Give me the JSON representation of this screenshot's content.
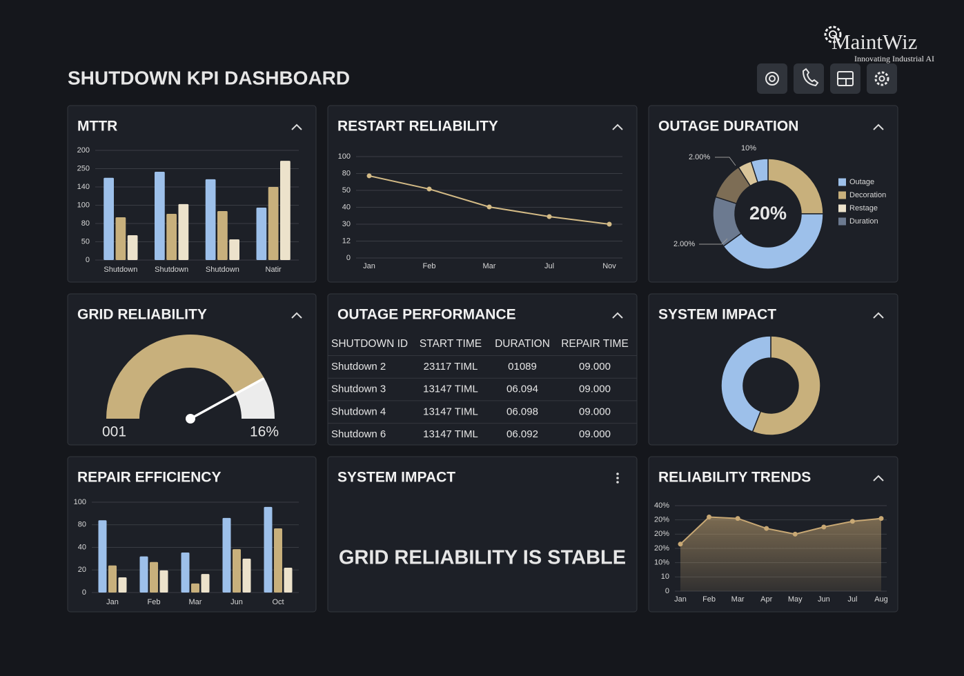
{
  "header": {
    "title": "SHUTDOWN KPI DASHBOARD",
    "brand": "MaintWiz",
    "tagline": "Innovating Industrial AI"
  },
  "chart_data": [
    {
      "type": "bar",
      "title": "MTTR",
      "categories": [
        "Shutdown",
        "Shutdown",
        "Shutdown",
        "Natir"
      ],
      "ylim": [
        0,
        6
      ],
      "yticks": [
        {
          "value": 0,
          "label": "0"
        },
        {
          "value": 1,
          "label": "50"
        },
        {
          "value": 2,
          "label": "80"
        },
        {
          "value": 3,
          "label": "100"
        },
        {
          "value": 4,
          "label": "140"
        },
        {
          "value": 5,
          "label": "250"
        },
        {
          "value": 6,
          "label": "200"
        }
      ],
      "grid": true,
      "series": [
        {
          "color": "#9dc0ea",
          "values": [
            4.5,
            4.83,
            4.42,
            2.87
          ]
        },
        {
          "color": "#c8b07c",
          "values": [
            2.34,
            2.53,
            2.68,
            4.0
          ]
        },
        {
          "color": "#ece2cb",
          "values": [
            1.36,
            3.06,
            1.13,
            5.43
          ]
        }
      ]
    },
    {
      "type": "line",
      "title": "RESTART RELIABILITY",
      "categories": [
        "Jan",
        "Feb",
        "Mar",
        "Jul",
        "Nov"
      ],
      "ylim": [
        0,
        6
      ],
      "yticks": [
        {
          "value": 0,
          "label": "0"
        },
        {
          "value": 1,
          "label": "12"
        },
        {
          "value": 2,
          "label": "30"
        },
        {
          "value": 3,
          "label": "40"
        },
        {
          "value": 4,
          "label": "50"
        },
        {
          "value": 5,
          "label": "80"
        },
        {
          "value": 6,
          "label": "100"
        }
      ],
      "grid": true,
      "color": "#d4bb86",
      "values": [
        4.86,
        4.08,
        3.02,
        2.45,
        2.0
      ]
    },
    {
      "type": "pie",
      "title": "OUTAGE DURATION",
      "center_label": "20%",
      "values": [
        25,
        40,
        15,
        11,
        4,
        5
      ],
      "colors": [
        "#c8b07c",
        "#9dc0ea",
        "#6c7a90",
        "#7d6d55",
        "#d9c59a",
        "#9dc0ea"
      ],
      "legend": [
        {
          "name": "Outage",
          "color": "#9dc0ea"
        },
        {
          "name": "Decoration",
          "color": "#c8b07c"
        },
        {
          "name": "Restage",
          "color": "#ece2cb"
        },
        {
          "name": "Duration",
          "color": "#6c7a90"
        }
      ],
      "annotations": [
        "10%",
        "2.00%",
        "2.00%"
      ]
    },
    {
      "type": "gauge",
      "title": "GRID RELIABILITY",
      "value": 16,
      "value_label": "16%",
      "min_label": "001",
      "ylim": [
        0,
        100
      ],
      "colors": [
        "#c8b07c",
        "#ececec"
      ]
    },
    {
      "type": "pie",
      "title": "SYSTEM IMPACT",
      "values": [
        56,
        44
      ],
      "colors": [
        "#c8b07c",
        "#9dc0ea"
      ]
    },
    {
      "type": "bar",
      "title": "REPAIR EFFICIENCY",
      "categories": [
        "Jan",
        "Feb",
        "Mar",
        "Jun",
        "Oct"
      ],
      "ylim": [
        0,
        4
      ],
      "yticks": [
        {
          "value": 0,
          "label": "0"
        },
        {
          "value": 1,
          "label": "20"
        },
        {
          "value": 2,
          "label": "40"
        },
        {
          "value": 3,
          "label": "80"
        },
        {
          "value": 4,
          "label": "100"
        }
      ],
      "grid": true,
      "series": [
        {
          "color": "#9dc0ea",
          "values": [
            3.2,
            1.6,
            1.77,
            3.3,
            3.79
          ]
        },
        {
          "color": "#c8b07c",
          "values": [
            1.2,
            1.35,
            0.4,
            1.92,
            2.84
          ]
        },
        {
          "color": "#ece2cb",
          "values": [
            0.67,
            0.98,
            0.82,
            1.5,
            1.1
          ]
        }
      ]
    },
    {
      "type": "area",
      "title": "RELIABILITY TRENDS",
      "categories": [
        "Jan",
        "Feb",
        "Mar",
        "Apr",
        "May",
        "Jun",
        "Jul",
        "Aug"
      ],
      "ylim": [
        0,
        6
      ],
      "yticks": [
        {
          "value": 0,
          "label": "0"
        },
        {
          "value": 1,
          "label": "10"
        },
        {
          "value": 2,
          "label": "10%"
        },
        {
          "value": 3,
          "label": "20%"
        },
        {
          "value": 4,
          "label": "20%"
        },
        {
          "value": 5,
          "label": "20%"
        },
        {
          "value": 6,
          "label": "40%"
        }
      ],
      "grid": true,
      "color": "#c8a874",
      "values": [
        3.3,
        5.2,
        5.1,
        4.4,
        4.0,
        4.5,
        4.9,
        5.1
      ]
    }
  ],
  "table": {
    "title": "OUTAGE PERFORMANCE",
    "columns": [
      "SHUTDOWN ID",
      "START TIME",
      "DURATION",
      "REPAIR TIME"
    ],
    "rows": [
      [
        "Shutdown 2",
        "23117 TIML",
        "01089",
        "09.000"
      ],
      [
        "Shutdown 3",
        "13147 TIML",
        "06.094",
        "09.000"
      ],
      [
        "Shutdown 4",
        "13147 TIML",
        "06.098",
        "09.000"
      ],
      [
        "Shutdown 6",
        "13147 TIML",
        "06.092",
        "09.000"
      ]
    ]
  },
  "status": {
    "title": "SYSTEM IMPACT",
    "message": "GRID RELIABILITY IS STABLE"
  }
}
